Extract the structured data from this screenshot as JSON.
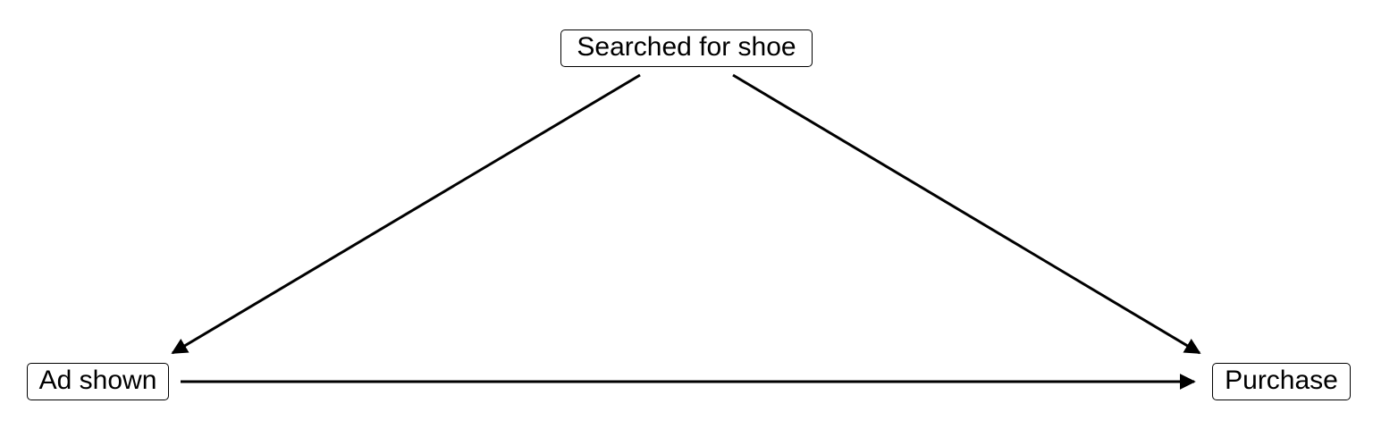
{
  "diagram": {
    "nodes": {
      "searched": {
        "label": "Searched for shoe"
      },
      "ad": {
        "label": "Ad shown"
      },
      "purchase": {
        "label": "Purchase"
      }
    },
    "edges": [
      {
        "from": "searched",
        "to": "ad"
      },
      {
        "from": "searched",
        "to": "purchase"
      },
      {
        "from": "ad",
        "to": "purchase"
      }
    ],
    "colors": {
      "line": "#000000",
      "node_border": "#000000",
      "background": "#ffffff"
    }
  }
}
